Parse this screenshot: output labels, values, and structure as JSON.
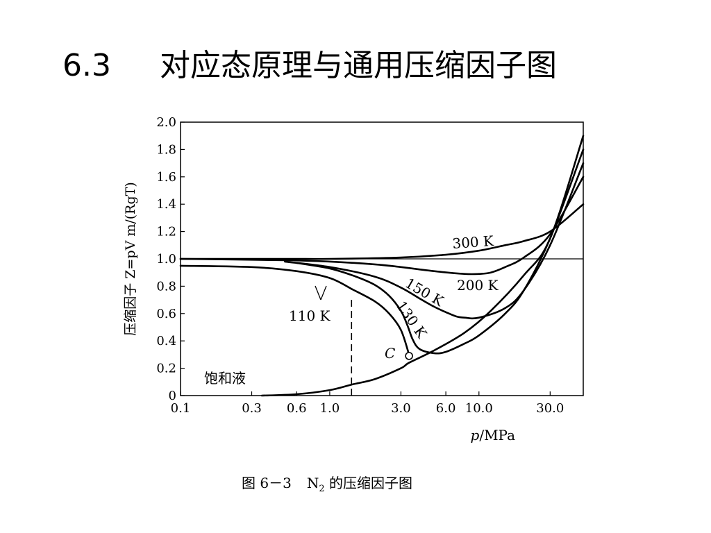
{
  "slide": {
    "title_number": "6.3",
    "title_text": "对应态原理与通用压缩因子图",
    "caption_prefix": "图 6－3",
    "caption_n": "N",
    "caption_sub": "2",
    "caption_suffix": " 的压缩因子图"
  },
  "chart_data": {
    "type": "line",
    "xscale": "log",
    "xlim": [
      0.1,
      50
    ],
    "ylim": [
      0,
      2.0
    ],
    "x_ticks": [
      {
        "v": 0.1,
        "label": "0.1"
      },
      {
        "v": 0.3,
        "label": "0.3"
      },
      {
        "v": 0.6,
        "label": "0.6"
      },
      {
        "v": 1.0,
        "label": "1.0"
      },
      {
        "v": 3.0,
        "label": "3.0"
      },
      {
        "v": 6.0,
        "label": "6.0"
      },
      {
        "v": 10.0,
        "label": "10.0"
      },
      {
        "v": 30.0,
        "label": "30.0"
      }
    ],
    "y_ticks": [
      {
        "v": 0,
        "label": "0"
      },
      {
        "v": 0.2,
        "label": "0.2"
      },
      {
        "v": 0.4,
        "label": "0.4"
      },
      {
        "v": 0.6,
        "label": "0.6"
      },
      {
        "v": 0.8,
        "label": "0.8"
      },
      {
        "v": 1.0,
        "label": "1.0"
      },
      {
        "v": 1.2,
        "label": "1.2"
      },
      {
        "v": 1.4,
        "label": "1.4"
      },
      {
        "v": 1.6,
        "label": "1.6"
      },
      {
        "v": 1.8,
        "label": "1.8"
      },
      {
        "v": 2.0,
        "label": "2.0"
      }
    ],
    "xlabel_italic": "p",
    "xlabel_rest": "/MPa",
    "ylabel": "压缩因子 Z=pV m/(RgT)",
    "reference_line_y": 1.0,
    "series": [
      {
        "name": "300 K",
        "x": [
          0.1,
          0.5,
          1,
          3,
          6,
          10,
          15,
          20,
          30,
          50
        ],
        "y": [
          1.0,
          1.0,
          1.0,
          1.01,
          1.03,
          1.06,
          1.1,
          1.13,
          1.2,
          1.4
        ]
      },
      {
        "name": "200 K",
        "x": [
          0.1,
          0.5,
          1,
          2,
          3,
          5,
          8,
          10,
          12,
          15,
          20,
          30,
          50
        ],
        "y": [
          1.0,
          0.99,
          0.98,
          0.96,
          0.94,
          0.91,
          0.89,
          0.89,
          0.9,
          0.94,
          1.01,
          1.18,
          1.6
        ]
      },
      {
        "name": "150 K",
        "x": [
          0.5,
          1,
          2,
          3,
          4,
          5,
          6,
          7,
          8,
          10,
          15,
          20,
          30,
          50
        ],
        "y": [
          0.98,
          0.94,
          0.87,
          0.79,
          0.71,
          0.65,
          0.61,
          0.58,
          0.57,
          0.57,
          0.64,
          0.77,
          1.1,
          1.7
        ]
      },
      {
        "name": "130 K",
        "x": [
          0.6,
          1,
          1.5,
          2,
          2.5,
          3,
          3.3,
          3.6,
          4,
          5,
          6,
          8,
          10,
          15,
          20,
          30,
          50
        ],
        "y": [
          0.97,
          0.93,
          0.87,
          0.81,
          0.73,
          0.62,
          0.52,
          0.41,
          0.34,
          0.31,
          0.32,
          0.38,
          0.44,
          0.6,
          0.77,
          1.15,
          1.8
        ]
      },
      {
        "name": "110 K",
        "x": [
          0.1,
          0.3,
          0.6,
          1,
          1.4
        ],
        "y": [
          0.95,
          0.94,
          0.91,
          0.86,
          0.78
        ]
      },
      {
        "name": "",
        "x": [
          1.4,
          2,
          2.5,
          3,
          3.4
        ],
        "y": [
          0.78,
          0.69,
          0.6,
          0.48,
          0.3
        ]
      },
      {
        "name": "",
        "x": [
          0.35,
          0.6,
          1,
          1.4,
          2,
          3,
          3.4,
          5,
          8,
          12,
          20,
          30,
          50
        ],
        "y": [
          0.0,
          0.01,
          0.04,
          0.08,
          0.12,
          0.2,
          0.24,
          0.33,
          0.46,
          0.62,
          0.88,
          1.15,
          1.9
        ]
      }
    ],
    "annotations": [
      {
        "id": "label_300",
        "text": "300 K"
      },
      {
        "id": "label_200",
        "text": "200 K"
      },
      {
        "id": "label_150",
        "text": "150 K"
      },
      {
        "id": "label_130",
        "text": "130 K"
      },
      {
        "id": "label_110",
        "text": "110 K"
      },
      {
        "id": "label_c",
        "text": "C"
      },
      {
        "id": "label_sat",
        "text": "饱和液"
      }
    ],
    "critical_point": {
      "x": 3.4,
      "y": 0.29
    },
    "dashed_line_x": 1.4,
    "dashed_line_y": [
      0.0,
      0.72
    ]
  }
}
